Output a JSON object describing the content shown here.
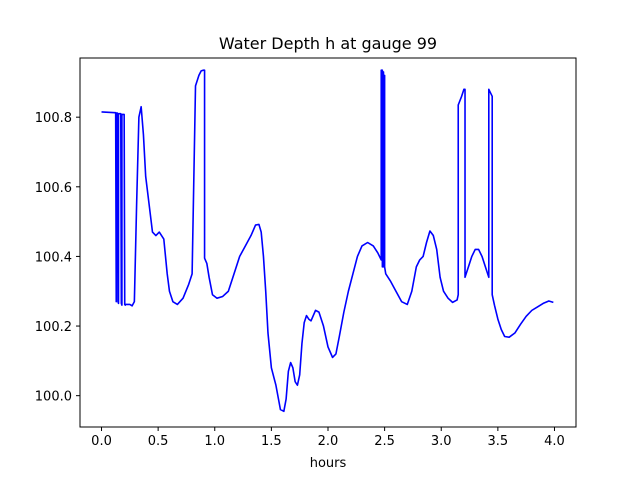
{
  "chart_data": {
    "type": "line",
    "title": "Water Depth h at gauge 99",
    "xlabel": "hours",
    "ylabel": "",
    "xlim": [
      -0.19,
      4.19
    ],
    "ylim": [
      99.91,
      100.97
    ],
    "xticks": [
      0.0,
      0.5,
      1.0,
      1.5,
      2.0,
      2.5,
      3.0,
      3.5,
      4.0
    ],
    "xtick_labels": [
      "0.0",
      "0.5",
      "1.0",
      "1.5",
      "2.0",
      "2.5",
      "3.0",
      "3.5",
      "4.0"
    ],
    "yticks": [
      100.0,
      100.2,
      100.4,
      100.6,
      100.8
    ],
    "ytick_labels": [
      "100.0",
      "100.2",
      "100.4",
      "100.6",
      "100.8"
    ],
    "grid": false,
    "line_color": "#0000ff",
    "series": [
      {
        "x": [
          0.0,
          0.12,
          0.125,
          0.13,
          0.13,
          0.14,
          0.145,
          0.15,
          0.15,
          0.17,
          0.175,
          0.18,
          0.18,
          0.2,
          0.205,
          0.21,
          0.21,
          0.25,
          0.27,
          0.29,
          0.31,
          0.33,
          0.35,
          0.37,
          0.39,
          0.42,
          0.45,
          0.48,
          0.51,
          0.55,
          0.58,
          0.6,
          0.63,
          0.67,
          0.72,
          0.77,
          0.8,
          0.83,
          0.83,
          0.86,
          0.88,
          0.9,
          0.91,
          0.91,
          0.93,
          0.95,
          0.98,
          1.02,
          1.07,
          1.12,
          1.17,
          1.22,
          1.27,
          1.32,
          1.36,
          1.39,
          1.41,
          1.43,
          1.45,
          1.47,
          1.5,
          1.54,
          1.58,
          1.61,
          1.63,
          1.65,
          1.67,
          1.69,
          1.71,
          1.73,
          1.75,
          1.77,
          1.79,
          1.81,
          1.83,
          1.85,
          1.87,
          1.89,
          1.92,
          1.96,
          2.0,
          2.04,
          2.07,
          2.1,
          2.14,
          2.18,
          2.22,
          2.26,
          2.3,
          2.35,
          2.4,
          2.44,
          2.47,
          2.47,
          2.48,
          2.48,
          2.49,
          2.49,
          2.5,
          2.5,
          2.51,
          2.55,
          2.6,
          2.65,
          2.7,
          2.74,
          2.78,
          2.81,
          2.84,
          2.87,
          2.9,
          2.93,
          2.96,
          2.99,
          3.02,
          3.06,
          3.1,
          3.14,
          3.15,
          3.15,
          3.18,
          3.2,
          3.21,
          3.21,
          3.24,
          3.27,
          3.3,
          3.33,
          3.36,
          3.39,
          3.42,
          3.42,
          3.45,
          3.45,
          3.47,
          3.5,
          3.53,
          3.56,
          3.6,
          3.65,
          3.7,
          3.75,
          3.8,
          3.85,
          3.9,
          3.95,
          3.99
        ],
        "y": [
          100.815,
          100.813,
          100.813,
          100.27,
          100.812,
          100.812,
          100.27,
          100.265,
          100.81,
          100.81,
          100.265,
          100.26,
          100.808,
          100.808,
          100.262,
          100.26,
          100.262,
          100.262,
          100.258,
          100.27,
          100.55,
          100.8,
          100.83,
          100.75,
          100.63,
          100.55,
          100.47,
          100.46,
          100.47,
          100.45,
          100.35,
          100.3,
          100.27,
          100.262,
          100.28,
          100.32,
          100.35,
          100.89,
          100.89,
          100.92,
          100.933,
          100.935,
          100.935,
          100.395,
          100.38,
          100.34,
          100.29,
          100.28,
          100.285,
          100.3,
          100.35,
          100.4,
          100.43,
          100.46,
          100.49,
          100.492,
          100.47,
          100.4,
          100.3,
          100.18,
          100.08,
          100.03,
          99.96,
          99.955,
          99.99,
          100.07,
          100.095,
          100.08,
          100.04,
          100.03,
          100.06,
          100.15,
          100.21,
          100.23,
          100.22,
          100.215,
          100.23,
          100.245,
          100.24,
          100.2,
          100.14,
          100.11,
          100.12,
          100.17,
          100.24,
          100.3,
          100.35,
          100.4,
          100.43,
          100.44,
          100.43,
          100.41,
          100.39,
          100.935,
          100.935,
          100.37,
          100.93,
          100.37,
          100.92,
          100.37,
          100.35,
          100.33,
          100.3,
          100.27,
          100.262,
          100.3,
          100.37,
          100.39,
          100.4,
          100.44,
          100.473,
          100.46,
          100.42,
          100.34,
          100.3,
          100.28,
          100.268,
          100.275,
          100.29,
          100.835,
          100.86,
          100.88,
          100.88,
          100.34,
          100.37,
          100.4,
          100.42,
          100.42,
          100.4,
          100.37,
          100.34,
          100.88,
          100.86,
          100.29,
          100.26,
          100.22,
          100.19,
          100.17,
          100.168,
          100.18,
          100.205,
          100.228,
          100.245,
          100.255,
          100.265,
          100.272,
          100.268
        ]
      }
    ]
  }
}
